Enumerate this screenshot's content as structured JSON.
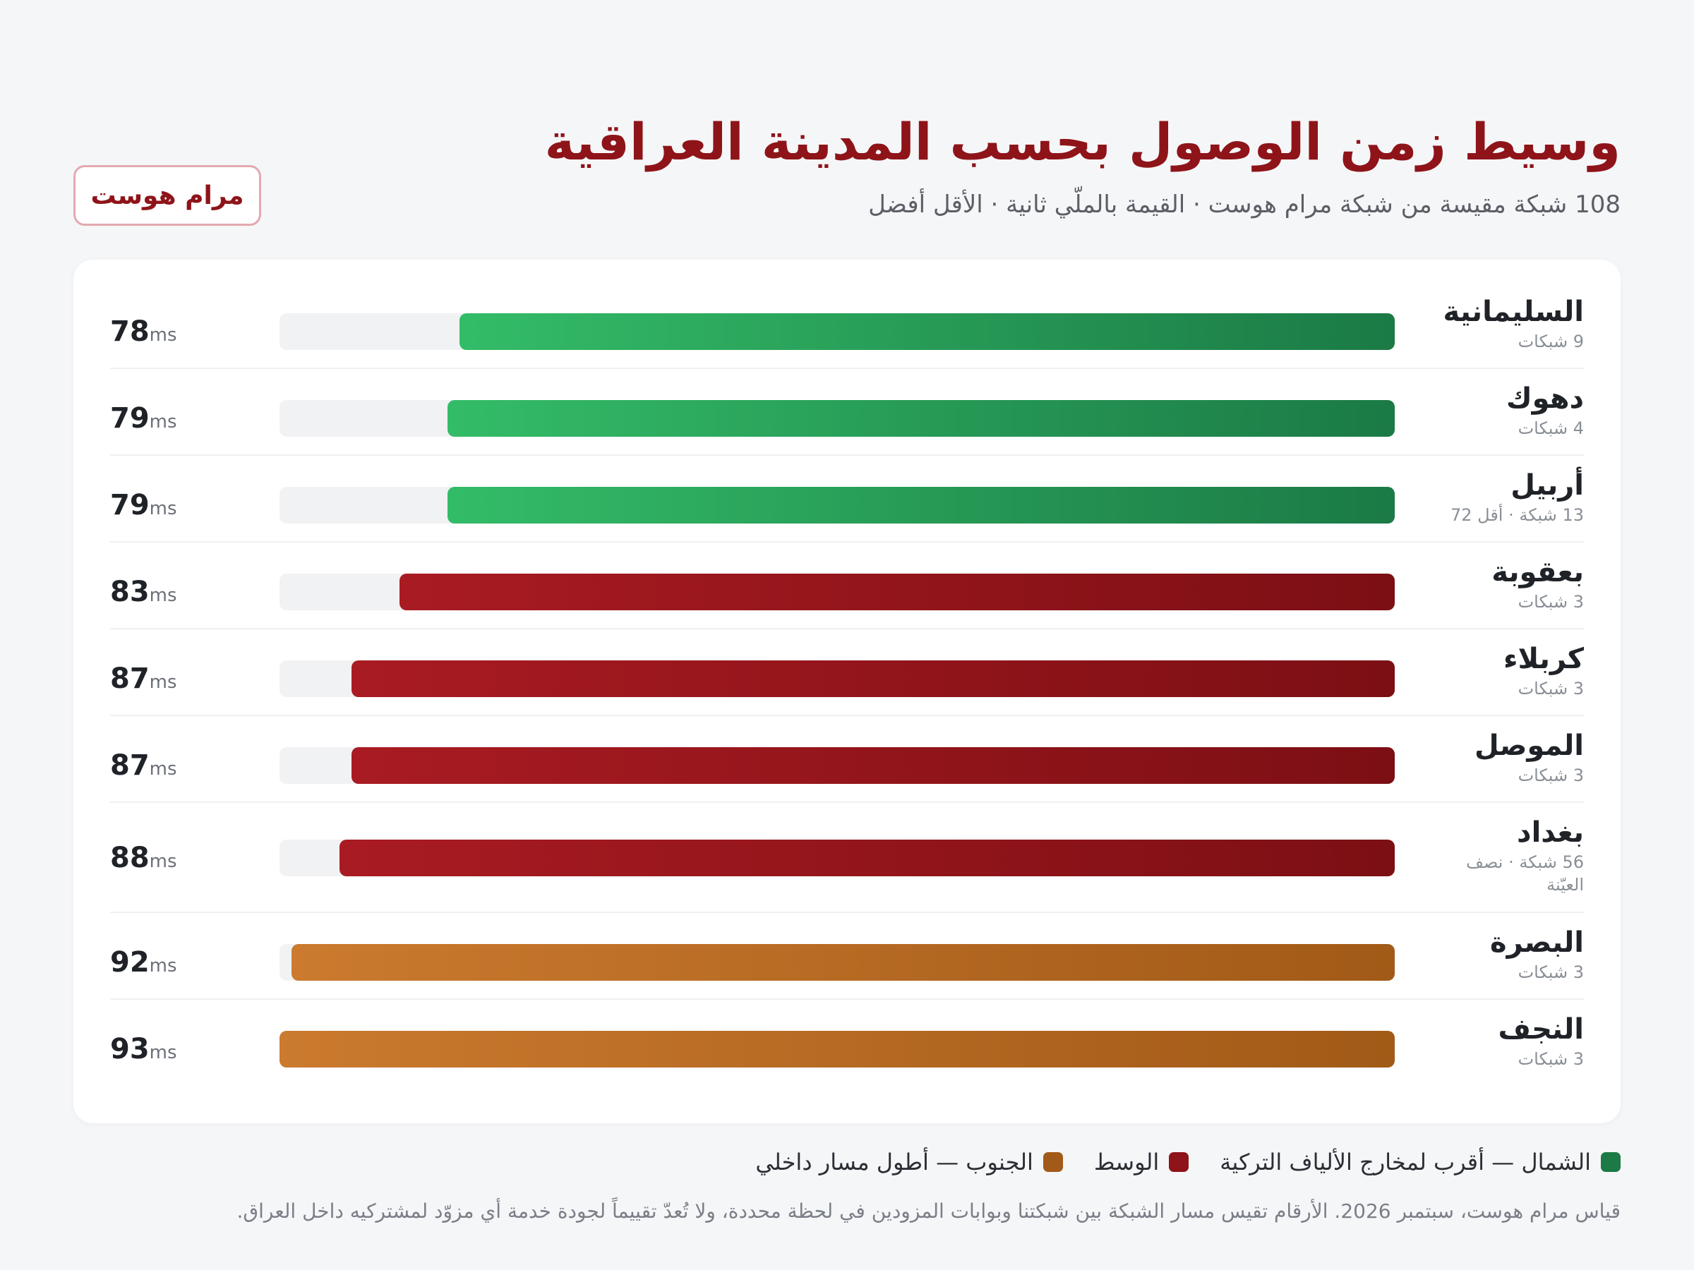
{
  "title": "وسيط زمن الوصول بحسب المدينة العراقية",
  "subtitle": "108 شبكة مقيسة من شبكة مرام هوست · القيمة بالملّي ثانية · الأقل أفضل",
  "brand": "مرام هوست",
  "unit": "ms",
  "legend": [
    {
      "label": "الشمال — أقرب لمخارج الألياف التركية",
      "color": "#1b7a45"
    },
    {
      "label": "الوسط",
      "color": "#8e1419"
    },
    {
      "label": "الجنوب — أطول مسار داخلي",
      "color": "#a15a17"
    }
  ],
  "footnote": "قياس مرام هوست، سبتمبر 2026. الأرقام تقيس مسار الشبكة بين شبكتنا وبوابات المزودين في لحظة محددة، ولا تُعدّ تقييماً لجودة خدمة أي مزوّد لمشتركيه داخل العراق.",
  "chart_data": {
    "type": "bar",
    "orientation": "horizontal",
    "title": "وسيط زمن الوصول بحسب المدينة العراقية",
    "unit": "ms",
    "xlim": [
      0,
      93
    ],
    "categories": [
      "السليمانية",
      "دهوك",
      "أربيل",
      "بعقوبة",
      "كربلاء",
      "الموصل",
      "بغداد",
      "البصرة",
      "النجف"
    ],
    "values": [
      78,
      79,
      79,
      83,
      87,
      87,
      88,
      92,
      93
    ],
    "value_labels": [
      "78",
      "79",
      "79",
      "83",
      "87",
      "87",
      "88",
      "92",
      "93"
    ],
    "sublabels": [
      "9 شبكات",
      "4 شبكات",
      "13 شبكة · أقل 72",
      "3 شبكات",
      "3 شبكات",
      "3 شبكات",
      "56 شبكة · نصف العيّنة",
      "3 شبكات",
      "3 شبكات"
    ],
    "groups": [
      "north",
      "north",
      "north",
      "central",
      "central",
      "central",
      "central",
      "south",
      "south"
    ]
  }
}
